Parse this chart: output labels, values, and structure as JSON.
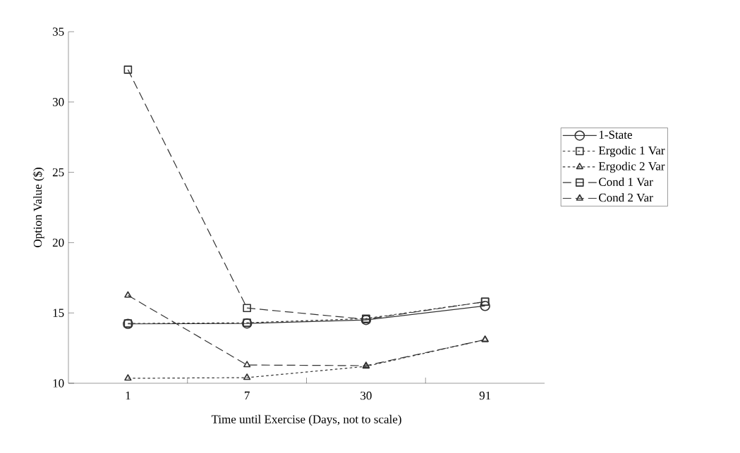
{
  "chart_data": {
    "type": "line",
    "xlabel": "Time until Exercise (Days, not to scale)",
    "ylabel": "Option Value ($)",
    "categories": [
      "1",
      "7",
      "30",
      "91"
    ],
    "ylim": [
      10,
      35
    ],
    "yticks": [
      10,
      15,
      20,
      25,
      30,
      35
    ],
    "grid": false,
    "legend": "right",
    "series": [
      {
        "name": "1-State",
        "color": "#333333",
        "marker": "circle",
        "line_style": "solid",
        "values": [
          14.22,
          14.25,
          14.5,
          15.5
        ]
      },
      {
        "name": "Ergodic 1 Var",
        "color": "#333333",
        "marker": "square",
        "line_style": "dotted",
        "values": [
          14.25,
          14.3,
          14.6,
          15.8
        ]
      },
      {
        "name": "Ergodic 2 Var",
        "color": "#333333",
        "marker": "triangle",
        "line_style": "dotted",
        "values": [
          10.35,
          10.4,
          11.2,
          13.1
        ]
      },
      {
        "name": "Cond 1 Var",
        "color": "#333333",
        "marker": "square",
        "line_style": "dashed",
        "values": [
          32.3,
          15.35,
          14.55,
          15.8
        ]
      },
      {
        "name": "Cond 2 Var",
        "color": "#333333",
        "marker": "triangle",
        "line_style": "dashed",
        "values": [
          16.25,
          11.3,
          11.25,
          13.1
        ]
      }
    ]
  }
}
